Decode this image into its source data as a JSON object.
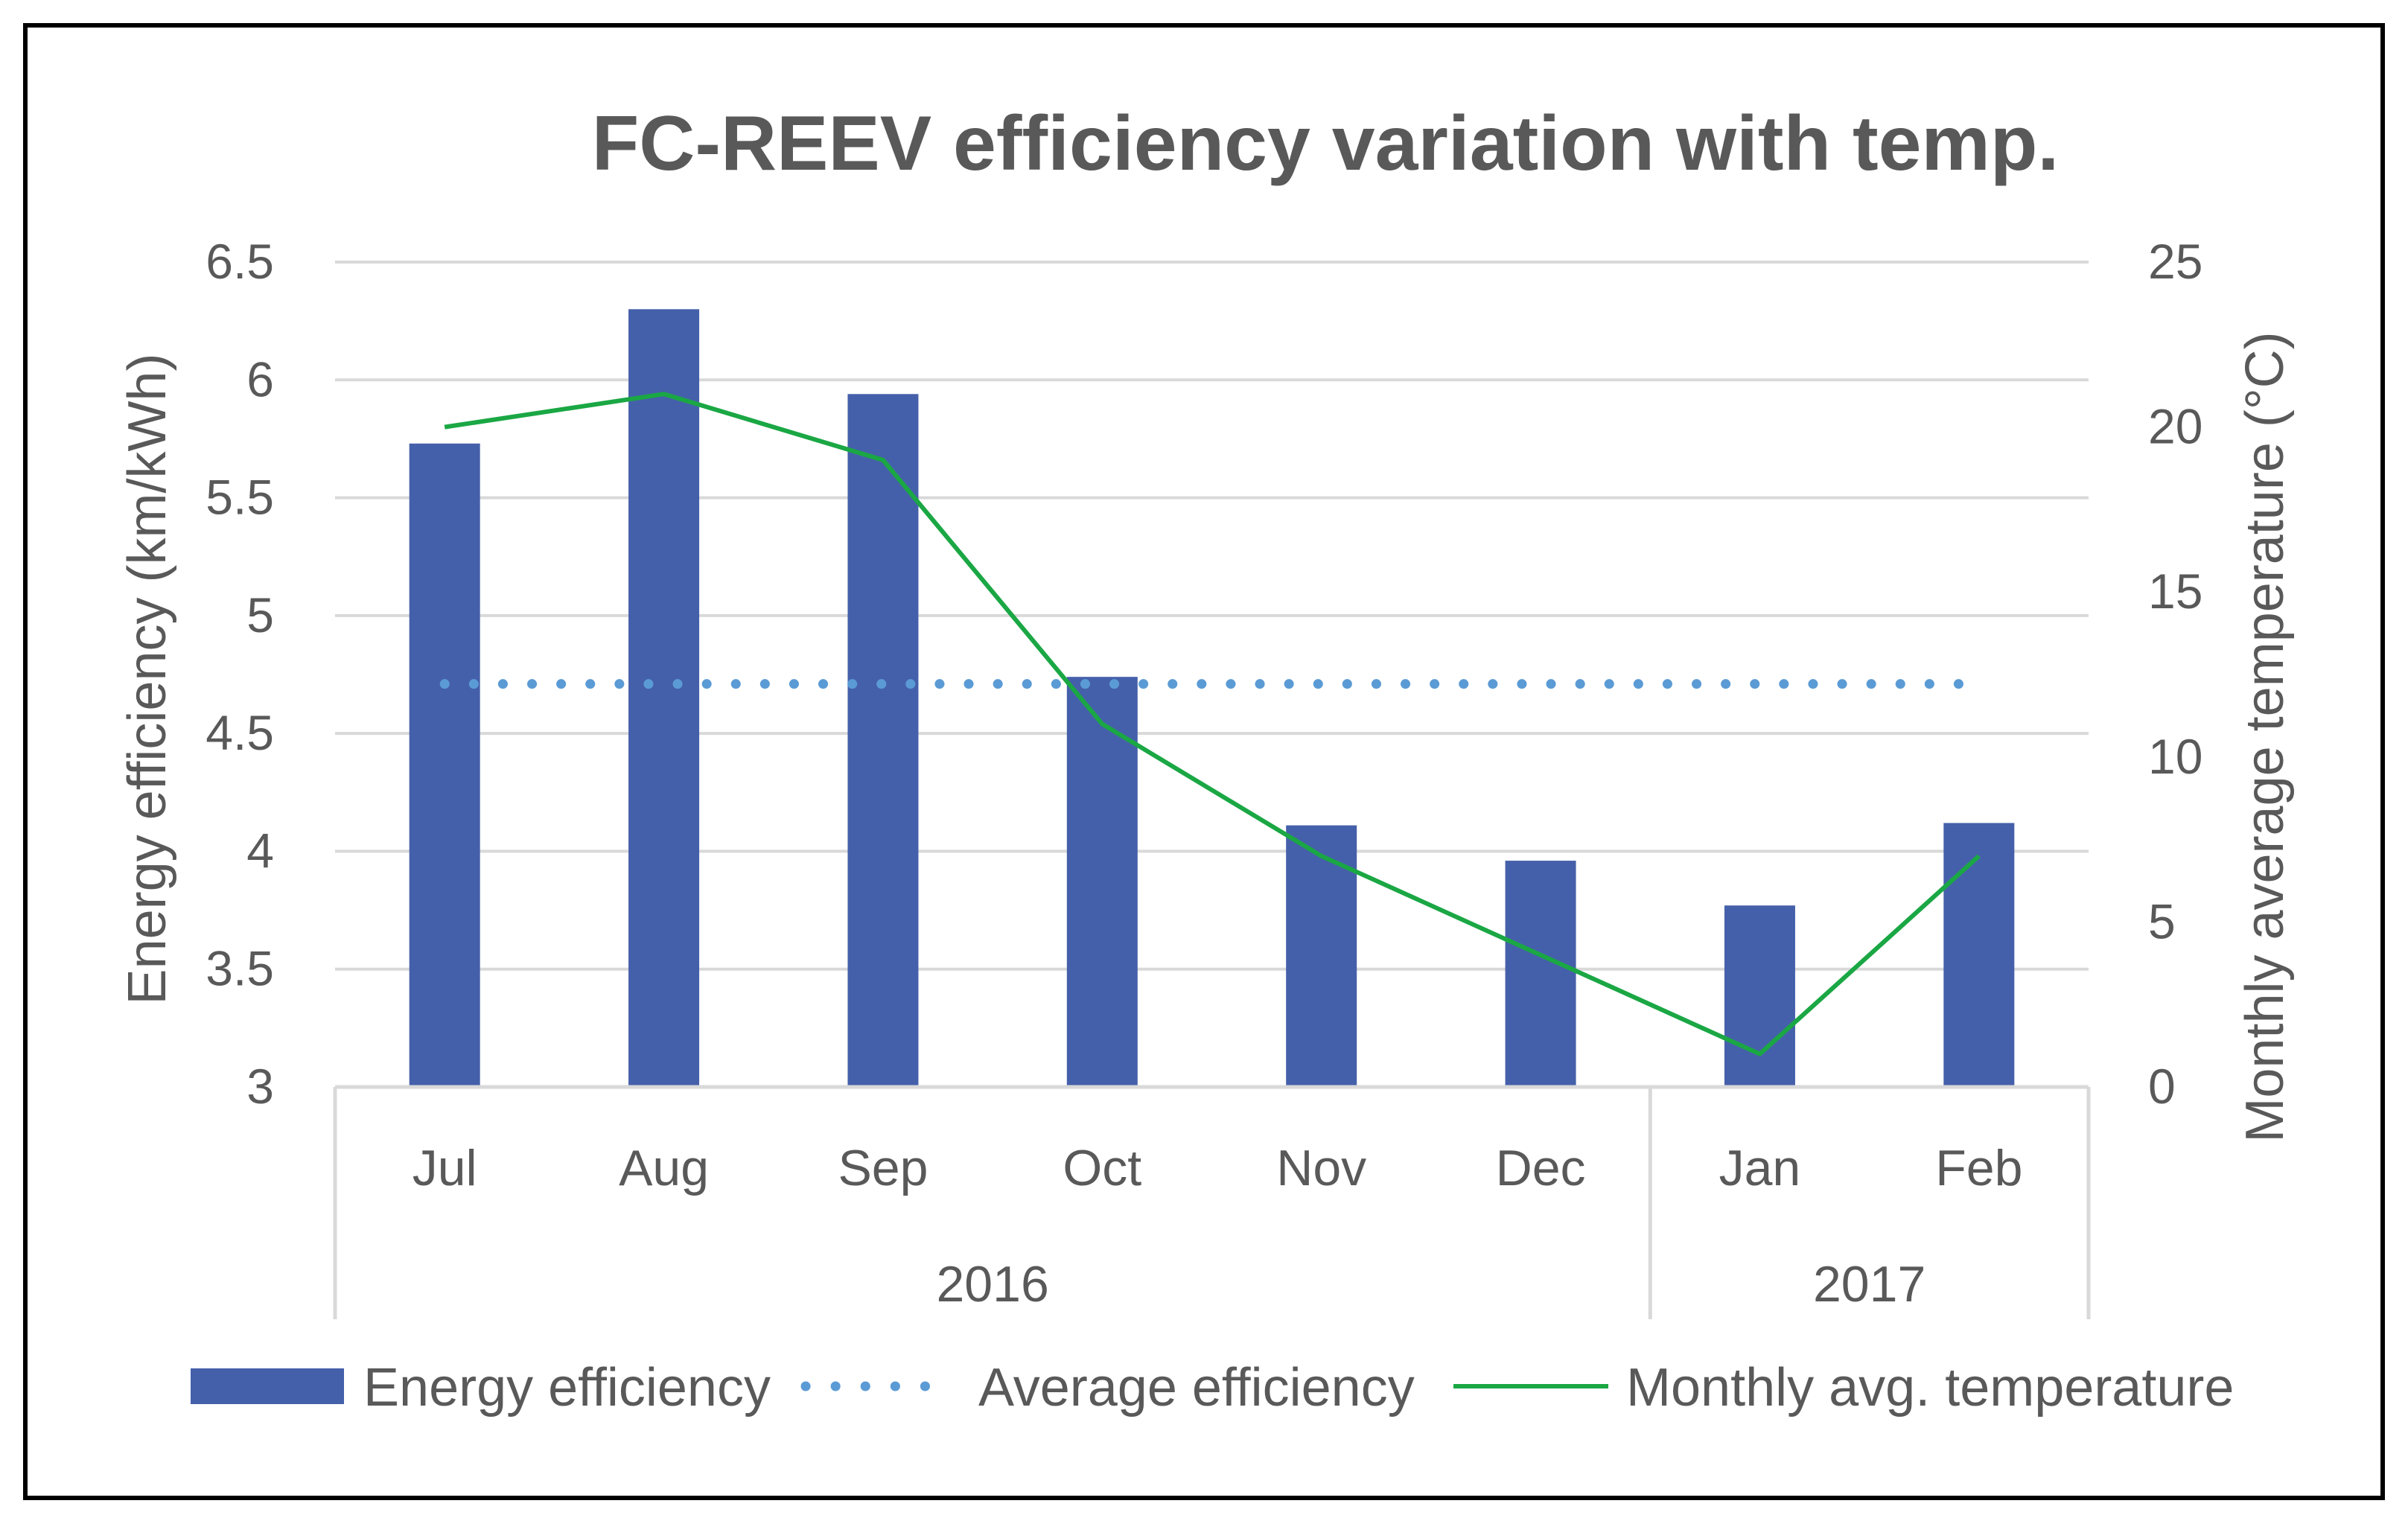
{
  "chart_data": {
    "type": "bar",
    "title": "FC-REEV efficiency variation with temp.",
    "categories": [
      "Jul",
      "Aug",
      "Sep",
      "Oct",
      "Nov",
      "Dec",
      "Jan",
      "Feb"
    ],
    "groups": [
      {
        "label": "2016",
        "span": [
          0,
          5
        ]
      },
      {
        "label": "2017",
        "span": [
          6,
          7
        ]
      }
    ],
    "ylabel": "Energy efficiency (km/kWh)",
    "y2label": "Monthly average temperature (°C)",
    "ylim": [
      3,
      6.5
    ],
    "yticks": [
      "6.5",
      "6",
      "5.5",
      "5",
      "4.5",
      "4",
      "3.5",
      "3"
    ],
    "y2lim": [
      0,
      25
    ],
    "y2ticks": [
      "25",
      "20",
      "15",
      "10",
      "5",
      "0"
    ],
    "grid": true,
    "legend_position": "bottom",
    "series": [
      {
        "name": "Energy efficiency",
        "kind": "bar",
        "axis": "left",
        "color": "#4560AA",
        "values": [
          5.73,
          6.3,
          5.94,
          4.74,
          4.11,
          3.96,
          3.77,
          4.12
        ]
      },
      {
        "name": "Average efficiency",
        "kind": "line-dotted",
        "axis": "left",
        "color": "#5B9BD5",
        "values": [
          4.71,
          4.71,
          4.71,
          4.71,
          4.71,
          4.71,
          4.71,
          4.71
        ]
      },
      {
        "name": "Monthly avg. temperature",
        "kind": "line",
        "axis": "right",
        "color": "#1AA744",
        "values": [
          20,
          21,
          19,
          11,
          7,
          4,
          1,
          7
        ]
      }
    ]
  }
}
